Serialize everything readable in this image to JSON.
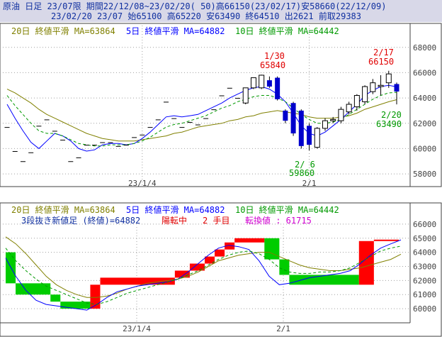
{
  "header": {
    "line1": "原油 日足 23/07限 期間22/12/08~23/02/20( 50)高66150(23/02/17)安58660(22/12/09)",
    "line2": "23/02/20 23/07 始65100 高65220 安63490 終64510 出2621 前取29383"
  },
  "colors": {
    "frame": "#404040",
    "header_bg": "#d8d8e8",
    "header_text": "#1030a0",
    "grid": "#a0a0a0",
    "ma20": "#808000",
    "ma5": "#0000ff",
    "ma10": "#009900",
    "candle_body": "#0000cc",
    "annot_high": "#e00000",
    "annot_low": "#009900",
    "kagi_up": "#ff0000",
    "kagi_down": "#00cc00",
    "pink": "#d000d0"
  },
  "panel1": {
    "legend_ma20": "20日 終値平滑 MA=63864",
    "legend_ma5": "5日 終値平滑 MA=64882",
    "legend_ma10": "10日 終値平滑 MA=64442",
    "x_ticks": [
      "23/1/4",
      "2/1"
    ],
    "y_ticks": [
      "68000",
      "66000",
      "64000",
      "62000",
      "60000",
      "58000"
    ],
    "annotations": {
      "a1_date": "1/30",
      "a1_val": "65840",
      "a2_date": "2/17",
      "a2_val": "66150",
      "a3_date": "2/20",
      "a3_val": "63490",
      "a4_date": "2/ 6",
      "a4_val": "59860"
    }
  },
  "panel2": {
    "legend_ma20": "20日 終値平滑 MA=63864",
    "legend_ma5": "5日 終値平滑 MA=64882",
    "legend_ma10": "10日 終値平滑 MA=64442",
    "title": "3段抜き新値足 (終値)=64882",
    "status": "陽転中",
    "step": "2 手目",
    "reversal": "転換値 : 61715",
    "x_ticks": [
      "23/1/4",
      "2/1"
    ],
    "y_ticks": [
      "66000",
      "65000",
      "64000",
      "63000",
      "62000",
      "61000",
      "60000"
    ]
  },
  "chart_data": [
    {
      "type": "candlestick",
      "title": "原油 日足 23/07限",
      "ylim": [
        57500,
        69500
      ],
      "x_ticks": [
        "23/1/4",
        "2/1"
      ],
      "y_ticks": [
        68000,
        66000,
        64000,
        62000,
        60000,
        58000
      ],
      "candles": [
        {
          "o": 61700,
          "h": 61700,
          "l": 61700,
          "c": 61700
        },
        {
          "o": 59800,
          "h": 59800,
          "l": 59800,
          "c": 59800
        },
        {
          "o": 59000,
          "h": 59000,
          "l": 59000,
          "c": 59000
        },
        {
          "o": 59700,
          "h": 59700,
          "l": 59700,
          "c": 59700
        },
        {
          "o": 61800,
          "h": 61800,
          "l": 61800,
          "c": 61800
        },
        {
          "o": 62300,
          "h": 62300,
          "l": 62300,
          "c": 62300
        },
        {
          "o": 61400,
          "h": 61400,
          "l": 61400,
          "c": 61400
        },
        {
          "o": 60700,
          "h": 60700,
          "l": 60700,
          "c": 60700
        },
        {
          "o": 59000,
          "h": 59000,
          "l": 59000,
          "c": 59000
        },
        {
          "o": 59300,
          "h": 59300,
          "l": 59300,
          "c": 59300
        },
        {
          "o": 60300,
          "h": 60300,
          "l": 60300,
          "c": 60300
        },
        {
          "o": 60300,
          "h": 60300,
          "l": 60300,
          "c": 60300
        },
        {
          "o": 60500,
          "h": 60500,
          "l": 60500,
          "c": 60500
        },
        {
          "o": 60500,
          "h": 60500,
          "l": 60500,
          "c": 60500
        },
        {
          "o": 60200,
          "h": 60200,
          "l": 60200,
          "c": 60200
        },
        {
          "o": 60300,
          "h": 60300,
          "l": 60300,
          "c": 60300
        },
        {
          "o": 60900,
          "h": 60900,
          "l": 60900,
          "c": 60900
        },
        {
          "o": 61100,
          "h": 61100,
          "l": 61100,
          "c": 61100
        },
        {
          "o": 61700,
          "h": 61700,
          "l": 61700,
          "c": 61700
        },
        {
          "o": 62300,
          "h": 62300,
          "l": 62300,
          "c": 62300
        },
        {
          "o": 63700,
          "h": 63700,
          "l": 63700,
          "c": 63700
        },
        {
          "o": 62400,
          "h": 62400,
          "l": 62400,
          "c": 62400
        },
        {
          "o": 61700,
          "h": 61700,
          "l": 61700,
          "c": 61700
        },
        {
          "o": 62100,
          "h": 62100,
          "l": 62100,
          "c": 62100
        },
        {
          "o": 61900,
          "h": 61900,
          "l": 61900,
          "c": 61900
        },
        {
          "o": 62400,
          "h": 62400,
          "l": 62400,
          "c": 62400
        },
        {
          "o": 63100,
          "h": 63100,
          "l": 63100,
          "c": 63100
        },
        {
          "o": 64200,
          "h": 64200,
          "l": 64200,
          "c": 64200
        },
        {
          "o": 64800,
          "h": 64800,
          "l": 64800,
          "c": 64800
        },
        {
          "o": 64000,
          "h": 64000,
          "l": 64000,
          "c": 64000
        },
        {
          "o": 63600,
          "h": 64800,
          "l": 63500,
          "c": 64800
        },
        {
          "o": 64800,
          "h": 65600,
          "l": 64700,
          "c": 65600
        },
        {
          "o": 64800,
          "h": 65840,
          "l": 64700,
          "c": 65800
        },
        {
          "o": 65400,
          "h": 65700,
          "l": 64800,
          "c": 64900
        },
        {
          "o": 65600,
          "h": 65700,
          "l": 63800,
          "c": 63900
        },
        {
          "o": 63000,
          "h": 63100,
          "l": 62000,
          "c": 62200
        },
        {
          "o": 63600,
          "h": 63700,
          "l": 61000,
          "c": 61200
        },
        {
          "o": 63000,
          "h": 63100,
          "l": 60000,
          "c": 60200
        },
        {
          "o": 61800,
          "h": 62000,
          "l": 59860,
          "c": 60300
        },
        {
          "o": 60100,
          "h": 61700,
          "l": 60000,
          "c": 61600
        },
        {
          "o": 61600,
          "h": 62400,
          "l": 61400,
          "c": 62200
        },
        {
          "o": 62200,
          "h": 62500,
          "l": 62000,
          "c": 62300
        },
        {
          "o": 62200,
          "h": 63300,
          "l": 62000,
          "c": 63100
        },
        {
          "o": 62900,
          "h": 63700,
          "l": 62700,
          "c": 63500
        },
        {
          "o": 63300,
          "h": 64300,
          "l": 63000,
          "c": 64200
        },
        {
          "o": 63700,
          "h": 65000,
          "l": 63500,
          "c": 64900
        },
        {
          "o": 64500,
          "h": 65500,
          "l": 64300,
          "c": 65200
        },
        {
          "o": 64900,
          "h": 65800,
          "l": 64200,
          "c": 65000
        },
        {
          "o": 65200,
          "h": 66150,
          "l": 64800,
          "c": 65900
        },
        {
          "o": 65100,
          "h": 65220,
          "l": 63490,
          "c": 64510
        }
      ],
      "series": [
        {
          "name": "20日 終値平滑 MA=63864",
          "values": [
            64700,
            64400,
            64000,
            63600,
            63100,
            62700,
            62400,
            62100,
            61800,
            61500,
            61200,
            61000,
            60800,
            60700,
            60600,
            60600,
            60600,
            60700,
            60800,
            60900,
            61000,
            61200,
            61300,
            61500,
            61700,
            61800,
            61900,
            62000,
            62200,
            62300,
            62500,
            62600,
            62800,
            62900,
            63000,
            62900,
            62800,
            62700,
            62500,
            62400,
            62400,
            62400,
            62500,
            62600,
            62800,
            63100,
            63300,
            63500,
            63700,
            63864
          ]
        },
        {
          "name": "5日 終値平滑 MA=64882",
          "values": [
            63500,
            62400,
            61400,
            60500,
            60000,
            60600,
            61200,
            61000,
            60600,
            60000,
            59800,
            59900,
            60300,
            60400,
            60400,
            60300,
            60400,
            60800,
            61300,
            61900,
            62500,
            62600,
            62500,
            62600,
            62700,
            63000,
            63300,
            63600,
            64000,
            64300,
            64600,
            64800,
            64900,
            64700,
            64300,
            63700,
            62800,
            61800,
            61200,
            61000,
            61300,
            61800,
            62300,
            62900,
            63500,
            64200,
            64600,
            64900,
            65000,
            64882
          ]
        },
        {
          "name": "10日 終値平滑 MA=64442",
          "values": [
            64200,
            63400,
            62700,
            62000,
            61400,
            61200,
            61200,
            61000,
            60700,
            60400,
            60300,
            60200,
            60200,
            60300,
            60300,
            60300,
            60400,
            60600,
            60900,
            61300,
            61700,
            61900,
            62000,
            62200,
            62400,
            62600,
            62900,
            63200,
            63400,
            63700,
            63900,
            64100,
            64200,
            64200,
            64000,
            63700,
            63200,
            62700,
            62300,
            62000,
            62000,
            62100,
            62300,
            62700,
            63100,
            63500,
            63900,
            64200,
            64400,
            64442
          ]
        }
      ]
    },
    {
      "type": "bar",
      "title": "3段抜き新値足 (終値)=64882",
      "ylim": [
        59500,
        66500
      ],
      "x_ticks": [
        "23/1/4",
        "2/1"
      ],
      "y_ticks": [
        66000,
        65000,
        64000,
        63000,
        62000,
        61000,
        60000
      ],
      "blocks": [
        {
          "start": 0,
          "end": 2,
          "from": 64000,
          "to": 61800,
          "dir": "down"
        },
        {
          "start": 2,
          "end": 9,
          "from": 61800,
          "to": 61000,
          "dir": "down"
        },
        {
          "start": 9,
          "end": 11,
          "from": 61000,
          "to": 60500,
          "dir": "down"
        },
        {
          "start": 11,
          "end": 17,
          "from": 60500,
          "to": 60000,
          "dir": "down"
        },
        {
          "start": 17,
          "end": 19,
          "from": 60000,
          "to": 61700,
          "dir": "up"
        },
        {
          "start": 19,
          "end": 34,
          "from": 61700,
          "to": 62200,
          "dir": "up"
        },
        {
          "start": 34,
          "end": 37,
          "from": 62200,
          "to": 62700,
          "dir": "up"
        },
        {
          "start": 37,
          "end": 40,
          "from": 62700,
          "to": 63200,
          "dir": "up"
        },
        {
          "start": 40,
          "end": 42,
          "from": 63200,
          "to": 63700,
          "dir": "up"
        },
        {
          "start": 42,
          "end": 44,
          "from": 63700,
          "to": 64200,
          "dir": "up"
        },
        {
          "start": 44,
          "end": 46,
          "from": 64200,
          "to": 64700,
          "dir": "up"
        },
        {
          "start": 46,
          "end": 52,
          "from": 64700,
          "to": 65000,
          "dir": "up"
        },
        {
          "start": 52,
          "end": 55,
          "from": 65000,
          "to": 63500,
          "dir": "down"
        },
        {
          "start": 55,
          "end": 57,
          "from": 63500,
          "to": 62400,
          "dir": "down"
        },
        {
          "start": 57,
          "end": 71,
          "from": 62400,
          "to": 61700,
          "dir": "down"
        },
        {
          "start": 71,
          "end": 74,
          "from": 61700,
          "to": 64800,
          "dir": "up"
        },
        {
          "start": 74,
          "end": 79,
          "from": 64800,
          "to": 64900,
          "dir": "up"
        }
      ],
      "series": [
        {
          "name": "20日 終値平滑 MA=63864",
          "values": [
            65100,
            64600,
            63900,
            63100,
            62300,
            61700,
            61300,
            61000,
            60800,
            60800,
            60900,
            61100,
            61400,
            61600,
            61800,
            61900,
            62000,
            62100,
            62300,
            62600,
            63000,
            63400,
            63600,
            63800,
            63900,
            64000,
            64000,
            63700,
            63400,
            63100,
            62900,
            62800,
            62700,
            62700,
            62800,
            62900,
            63100,
            63300,
            63500,
            63864
          ]
        },
        {
          "name": "5日 終値平滑 MA=64882",
          "values": [
            63600,
            62300,
            61300,
            60600,
            60300,
            60200,
            60100,
            60000,
            59900,
            60300,
            60800,
            61200,
            61400,
            61600,
            61700,
            61800,
            61900,
            62100,
            62600,
            63200,
            63800,
            64300,
            64500,
            64400,
            64200,
            63400,
            62300,
            61700,
            61800,
            62000,
            62200,
            62300,
            62400,
            62500,
            62700,
            63200,
            63800,
            64300,
            64600,
            64882
          ]
        },
        {
          "name": "10日 終値平滑 MA=64442",
          "values": [
            64300,
            63400,
            62700,
            62100,
            61600,
            61300,
            61000,
            60700,
            60400,
            60300,
            60500,
            60800,
            61100,
            61300,
            61500,
            61700,
            61900,
            62100,
            62400,
            62700,
            63100,
            63500,
            63800,
            64000,
            64100,
            63900,
            63500,
            62900,
            62600,
            62500,
            62500,
            62600,
            62600,
            62700,
            62900,
            63300,
            63700,
            64100,
            64300,
            64442
          ]
        }
      ]
    }
  ]
}
